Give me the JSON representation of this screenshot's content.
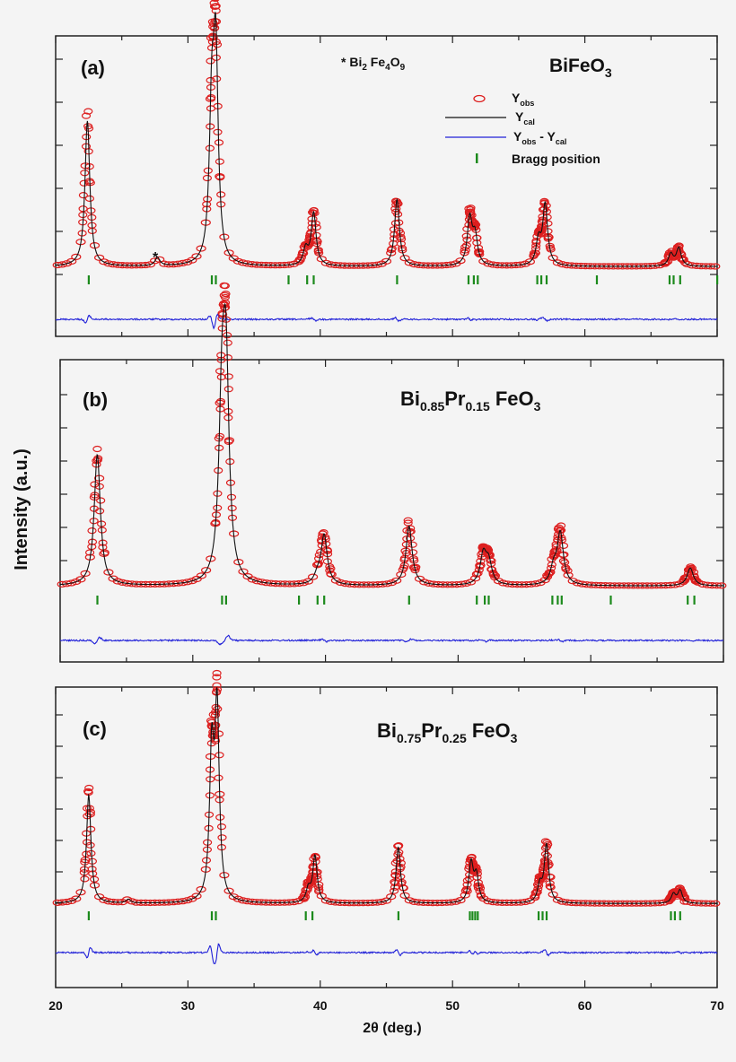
{
  "ylabel": "Intensity (a.u.)",
  "xlabel": "2θ (deg.)",
  "x_ticks": [
    "20",
    "30",
    "40",
    "50",
    "60",
    "70"
  ],
  "legend": {
    "yobs_main": "Y",
    "yobs_sub": "obs",
    "ycal_main": "Y",
    "ycal_sub": "cal",
    "diff_main1": "Y",
    "diff_sub1": "obs",
    "diff_mid": " - Y",
    "diff_sub2": "cal",
    "bragg": "Bragg position"
  },
  "impurity_note": {
    "star": "* Bi",
    "s1": "2",
    "fe": " Fe",
    "s2": "4",
    "o": "O",
    "s3": "9"
  },
  "panels": [
    {
      "tag": "(a)",
      "formula": [
        "BiFeO",
        "3"
      ]
    },
    {
      "tag": "(b)",
      "formula": [
        "Bi",
        "0.85",
        "Pr",
        "0.15",
        " FeO",
        "3"
      ]
    },
    {
      "tag": "(c)",
      "formula": [
        "Bi",
        "0.75",
        "Pr",
        "0.25",
        " FeO",
        "3"
      ]
    }
  ],
  "colors": {
    "obs": "#dd1f1f",
    "cal": "#111111",
    "diff": "#2020d8",
    "bragg": "#1c8a1c"
  },
  "chart_data": [
    {
      "type": "line",
      "title": "BiFeO3",
      "xlim": [
        20,
        70
      ],
      "xlabel": "2θ (deg.)",
      "ylabel": "Intensity (a.u.)",
      "series": [
        {
          "name": "Yobs",
          "peaks": [
            [
              22.4,
              0.72
            ],
            [
              27.7,
              0.04
            ],
            [
              31.8,
              0.7
            ],
            [
              32.1,
              1.0
            ],
            [
              38.9,
              0.08
            ],
            [
              39.5,
              0.26
            ],
            [
              45.8,
              0.33
            ],
            [
              51.3,
              0.23
            ],
            [
              51.7,
              0.14
            ],
            [
              56.5,
              0.12
            ],
            [
              57.0,
              0.3
            ],
            [
              66.5,
              0.06
            ],
            [
              67.1,
              0.09
            ]
          ]
        },
        {
          "name": "Ycal"
        },
        {
          "name": "Yobs - Ycal"
        }
      ],
      "bragg_positions": [
        22.5,
        31.8,
        32.1,
        37.6,
        39.0,
        39.5,
        45.8,
        51.2,
        51.6,
        51.9,
        56.4,
        56.7,
        57.1,
        60.9,
        66.4,
        66.7,
        67.2,
        70.0
      ],
      "impurity_marker": {
        "label": "*",
        "x": 27.7
      }
    },
    {
      "type": "line",
      "title": "Bi0.85Pr0.15FeO3",
      "xlim": [
        20,
        70
      ],
      "series": [
        {
          "name": "Yobs",
          "peaks": [
            [
              22.8,
              0.66
            ],
            [
              32.2,
              0.8
            ],
            [
              32.5,
              1.0
            ],
            [
              39.4,
              0.04
            ],
            [
              39.9,
              0.25
            ],
            [
              46.3,
              0.3
            ],
            [
              51.9,
              0.15
            ],
            [
              52.3,
              0.11
            ],
            [
              57.2,
              0.08
            ],
            [
              57.7,
              0.26
            ],
            [
              67.5,
              0.09
            ]
          ]
        },
        {
          "name": "Ycal"
        },
        {
          "name": "Yobs - Ycal"
        }
      ],
      "bragg_positions": [
        22.8,
        32.2,
        32.5,
        38.0,
        39.4,
        39.9,
        46.3,
        51.4,
        52.0,
        52.3,
        57.1,
        57.5,
        57.8,
        61.5,
        67.3,
        67.8
      ]
    },
    {
      "type": "line",
      "title": "Bi0.75Pr0.25FeO3",
      "xlim": [
        20,
        70
      ],
      "series": [
        {
          "name": "Yobs",
          "peaks": [
            [
              22.5,
              0.58
            ],
            [
              25.5,
              0.02
            ],
            [
              31.8,
              0.76
            ],
            [
              32.2,
              1.0
            ],
            [
              39.1,
              0.07
            ],
            [
              39.6,
              0.25
            ],
            [
              45.9,
              0.3
            ],
            [
              51.4,
              0.21
            ],
            [
              51.8,
              0.14
            ],
            [
              56.6,
              0.09
            ],
            [
              57.1,
              0.31
            ],
            [
              66.7,
              0.05
            ],
            [
              67.2,
              0.07
            ]
          ]
        },
        {
          "name": "Ycal"
        },
        {
          "name": "Yobs - Ycal"
        }
      ],
      "bragg_positions": [
        22.5,
        31.8,
        32.1,
        38.9,
        39.4,
        45.9,
        51.3,
        51.5,
        51.7,
        51.9,
        56.5,
        56.8,
        57.1,
        66.5,
        66.8,
        67.2
      ]
    }
  ]
}
